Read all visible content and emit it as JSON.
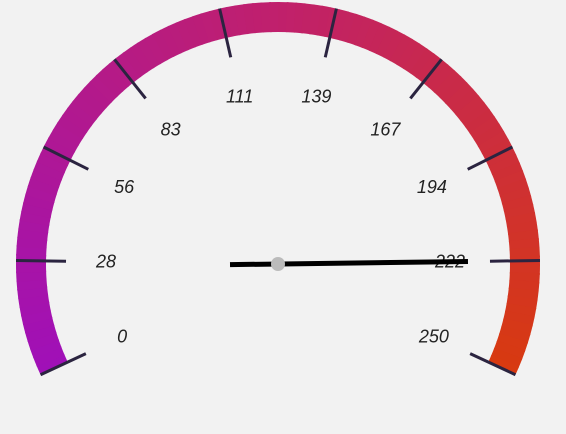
{
  "chart_data": {
    "type": "gauge",
    "title": "",
    "range": [
      0,
      250
    ],
    "value": 222,
    "ticks": [
      0,
      28,
      56,
      83,
      111,
      139,
      167,
      194,
      222,
      250
    ],
    "tick_labels": [
      "0",
      "28",
      "56",
      "83",
      "111",
      "139",
      "167",
      "194",
      "222",
      "250"
    ],
    "colors": {
      "start": "#a010b8",
      "middle": "#c0206c",
      "end": "#d83a10",
      "tick": "#2b2440",
      "needle": "#000000",
      "hub": "#bbbbbb",
      "background": "#f2f2f2"
    }
  }
}
